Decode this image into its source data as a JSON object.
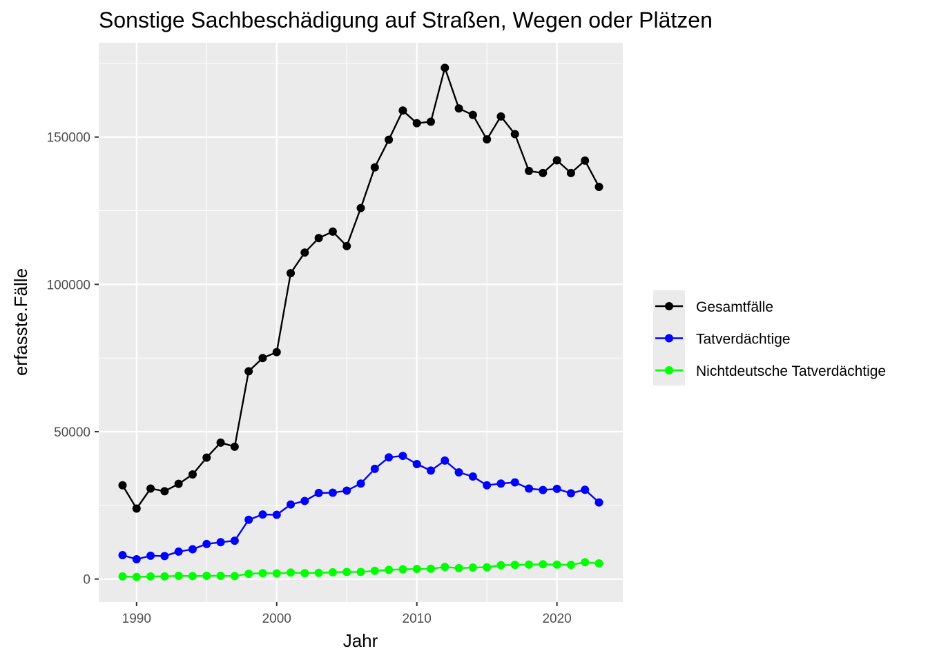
{
  "chart_data": {
    "type": "line",
    "title": "Sonstige Sachbeschädigung auf Straßen, Wegen oder Plätzen",
    "xlabel": "Jahr",
    "ylabel": "erfasste.Fälle",
    "xlim": [
      1987.3,
      2024.7
    ],
    "ylim": [
      -7800,
      182000
    ],
    "x_ticks": [
      1990,
      2000,
      2010,
      2020
    ],
    "x_tick_labels": [
      "1990",
      "2000",
      "2010",
      "2020"
    ],
    "y_ticks": [
      0,
      50000,
      100000,
      150000
    ],
    "y_tick_labels": [
      "0",
      "50000",
      "100000",
      "150000"
    ],
    "grid": true,
    "legend_position": "right",
    "x": [
      1989,
      1990,
      1991,
      1992,
      1993,
      1994,
      1995,
      1996,
      1997,
      1998,
      1999,
      2000,
      2001,
      2002,
      2003,
      2004,
      2005,
      2006,
      2007,
      2008,
      2009,
      2010,
      2011,
      2012,
      2013,
      2014,
      2015,
      2016,
      2017,
      2018,
      2019,
      2020,
      2021,
      2022,
      2023
    ],
    "series": [
      {
        "name": "Gesamtfälle",
        "color": "#000000",
        "values": [
          31800,
          23900,
          30700,
          29800,
          32300,
          35500,
          41200,
          46300,
          44900,
          70500,
          75000,
          77000,
          103800,
          110800,
          115700,
          117900,
          113000,
          125900,
          139700,
          149100,
          159000,
          154700,
          155200,
          173500,
          159700,
          157500,
          149200,
          157000,
          151000,
          138500,
          137800,
          142100,
          137800,
          142000,
          133100
        ]
      },
      {
        "name": "Tatverdächtige",
        "color": "#0000ff",
        "values": [
          8100,
          6700,
          7900,
          7800,
          9300,
          10100,
          11900,
          12500,
          13000,
          20100,
          21900,
          21800,
          25300,
          26500,
          29200,
          29300,
          30000,
          32400,
          37400,
          41300,
          41800,
          39000,
          36800,
          40200,
          36200,
          34800,
          31800,
          32400,
          32800,
          30700,
          30200,
          30600,
          29100,
          30300,
          26000
        ]
      },
      {
        "name": "Nichtdeutsche Tatverdächtige",
        "color": "#00ff00",
        "values": [
          900,
          700,
          900,
          900,
          1100,
          1000,
          1100,
          1100,
          1000,
          1800,
          2000,
          1900,
          2200,
          2000,
          2100,
          2300,
          2400,
          2400,
          2800,
          3100,
          3300,
          3400,
          3500,
          4100,
          3700,
          3900,
          4000,
          4700,
          4800,
          4900,
          5000,
          4900,
          4800,
          5700,
          5300
        ]
      }
    ]
  }
}
